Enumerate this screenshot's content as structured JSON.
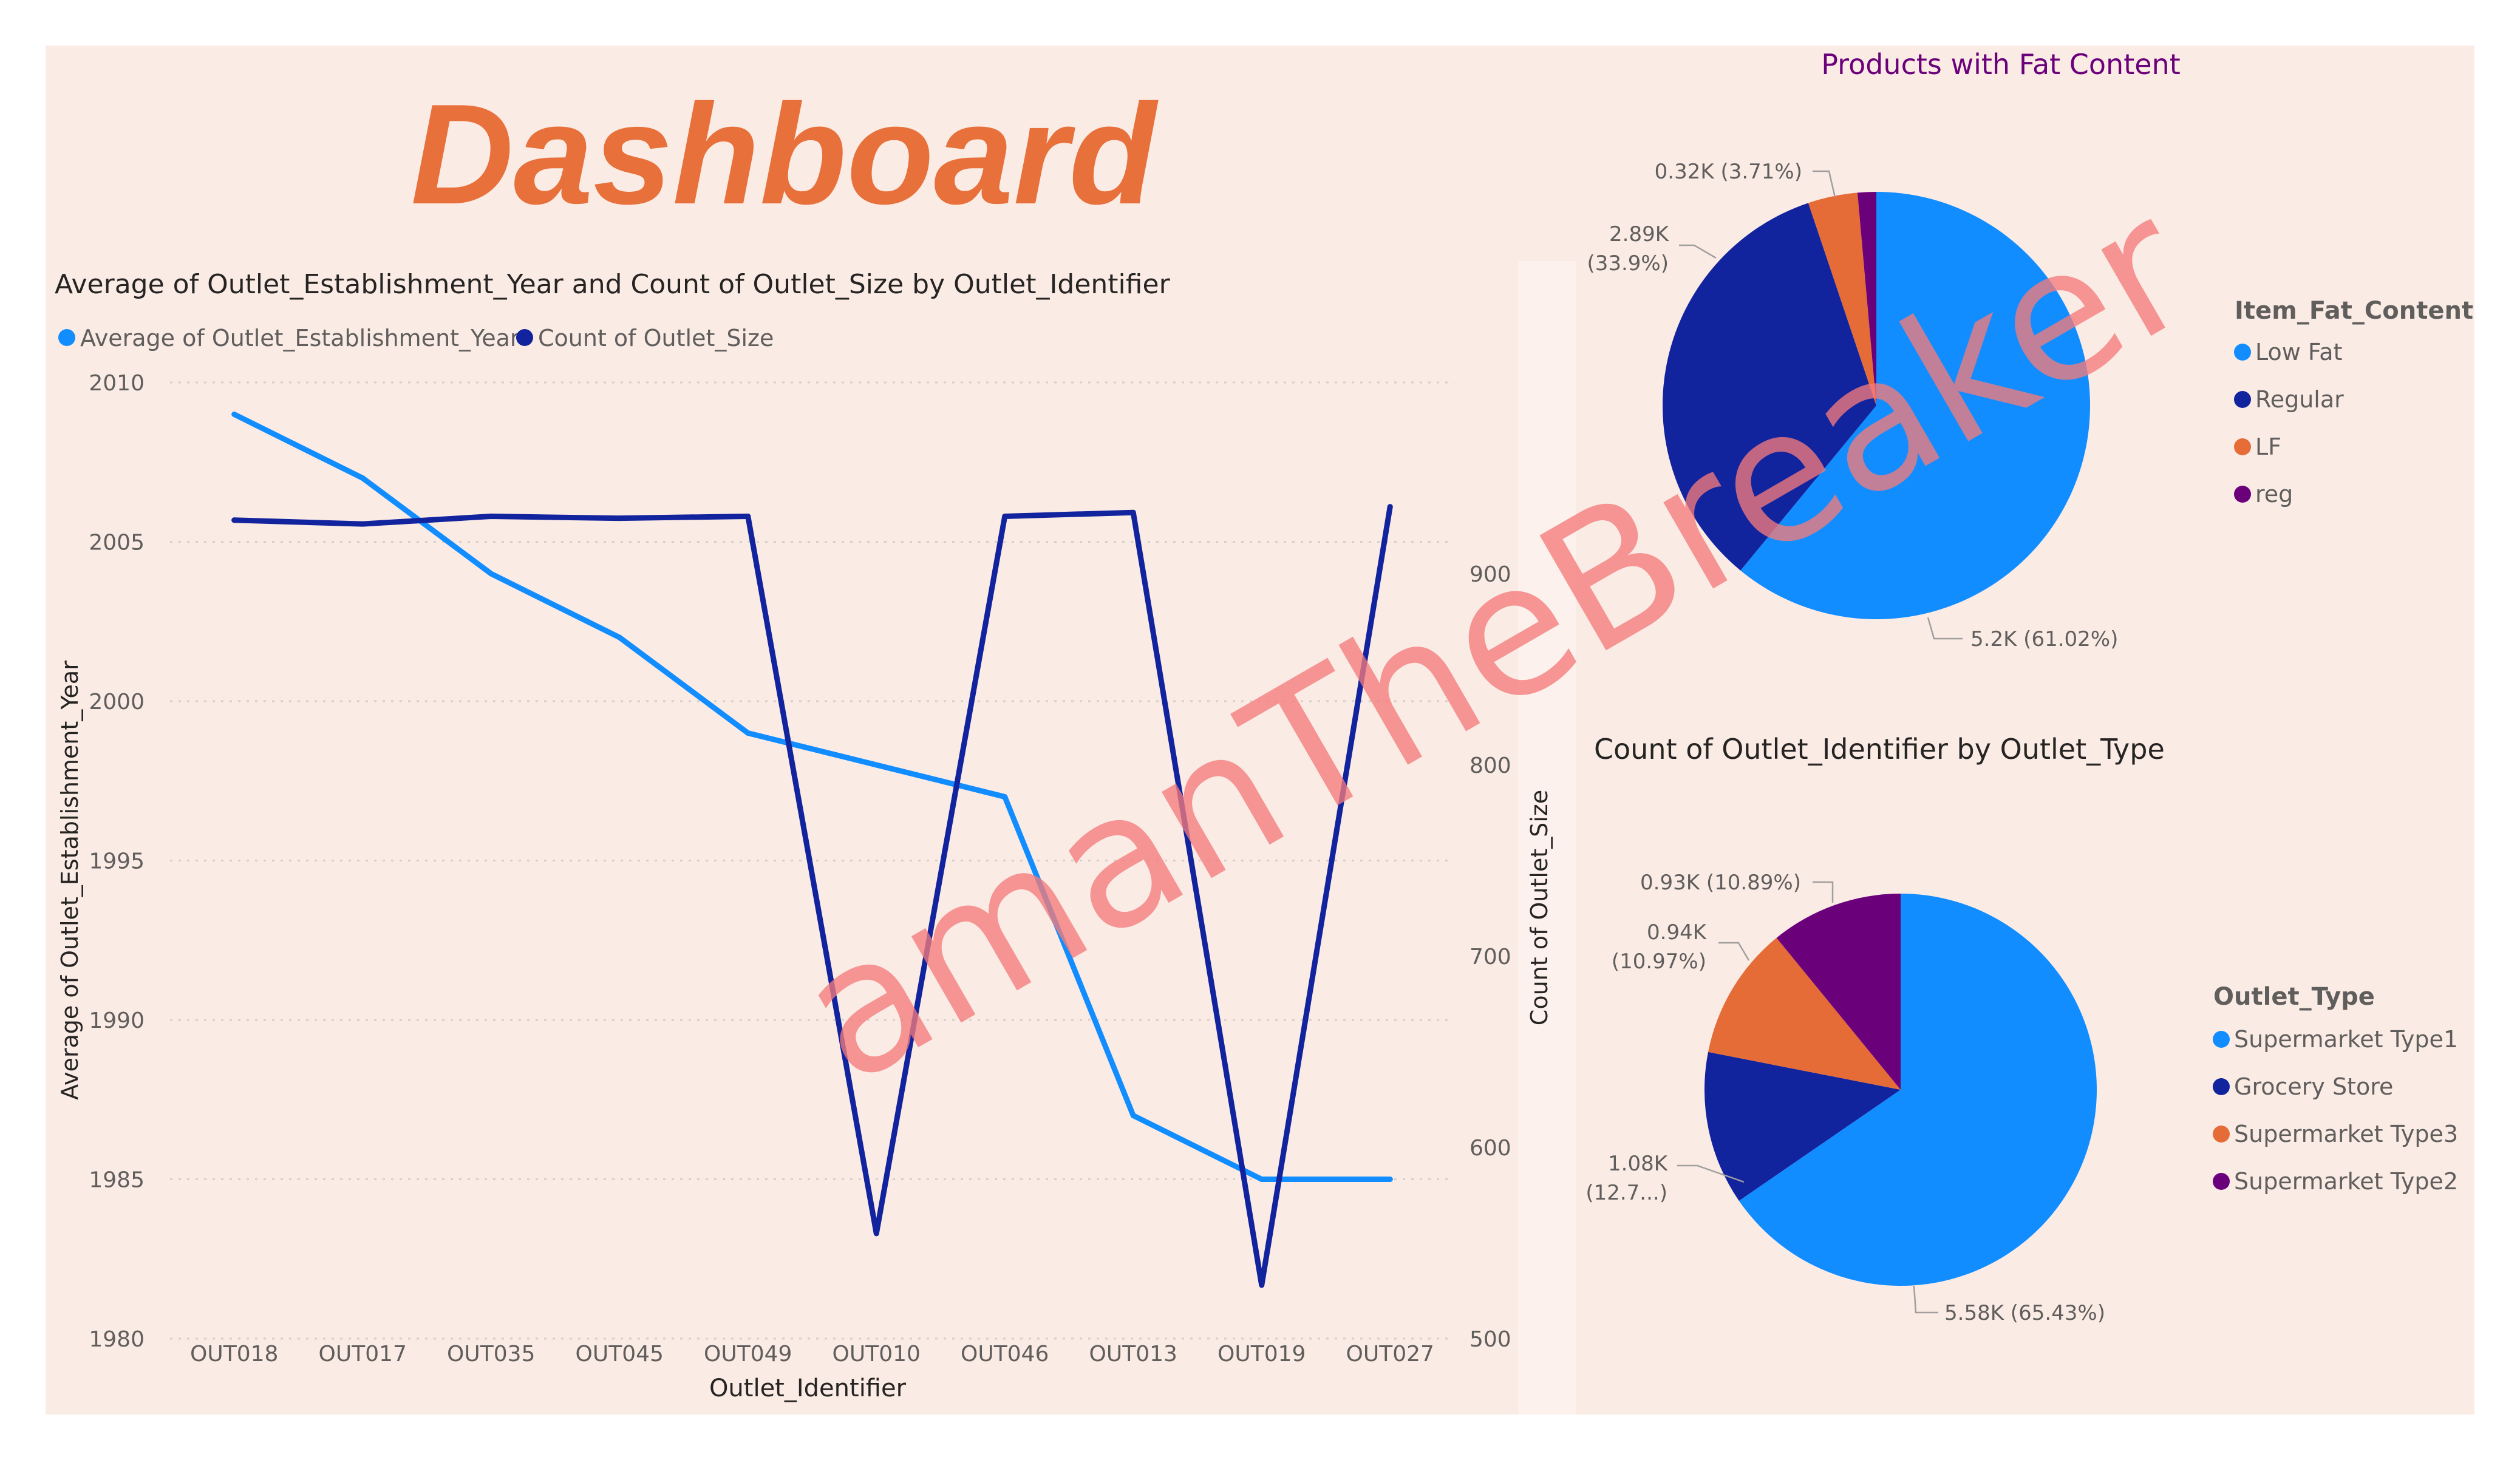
{
  "dashboard": {
    "title": "Dashboard",
    "watermark": "amanTheBreaker"
  },
  "colors": {
    "panel_bg": "#fbebe5",
    "light_blue": "#118dff",
    "dark_blue": "#12239e",
    "orange": "#e66c37",
    "purple": "#6b007b",
    "title_orange": "#e8703a",
    "title_purple": "#6b007b",
    "watermark": "#f47b7b"
  },
  "chart_data": [
    {
      "type": "line",
      "title": "Average of Outlet_Establishment_Year and Count of Outlet_Size by Outlet_Identifier",
      "xlabel": "Outlet_Identifier",
      "ylabel": "Average of Outlet_Establishment_Year",
      "y2label": "Count of Outlet_Size",
      "categories": [
        "OUT018",
        "OUT017",
        "OUT035",
        "OUT045",
        "OUT049",
        "OUT010",
        "OUT046",
        "OUT013",
        "OUT019",
        "OUT027"
      ],
      "ylim": [
        1980,
        2010
      ],
      "yticks": [
        "1980",
        "1985",
        "1990",
        "1995",
        "2000",
        "2005",
        "2010"
      ],
      "y2lim": [
        500,
        1000
      ],
      "y2ticks": [
        "500",
        "600",
        "700",
        "800",
        "900"
      ],
      "grid": true,
      "legend_position": "top-left",
      "series": [
        {
          "name": "Average of Outlet_Establishment_Year",
          "axis": "left",
          "color": "#118dff",
          "values": [
            2009,
            2007,
            2004,
            2002,
            1999,
            1998,
            1997,
            1987,
            1985,
            1985
          ]
        },
        {
          "name": "Count of Outlet_Size",
          "axis": "right",
          "color": "#12239e",
          "values": [
            928,
            926,
            930,
            929,
            930,
            555,
            930,
            932,
            528,
            935
          ]
        }
      ]
    },
    {
      "type": "pie",
      "title": "Products with Fat Content",
      "legend_title": "Item_Fat_Content",
      "legend_position": "right",
      "slices": [
        {
          "label": "Low Fat",
          "value": 5.2,
          "percent": 61.02,
          "color": "#118dff",
          "data_label": "5.2K (61.02%)"
        },
        {
          "label": "Regular",
          "value": 2.89,
          "percent": 33.9,
          "color": "#12239e",
          "data_label": "2.89K (33.9%)"
        },
        {
          "label": "LF",
          "value": 0.32,
          "percent": 3.71,
          "color": "#e66c37",
          "data_label": "0.32K (3.71%)"
        },
        {
          "label": "reg",
          "value": 0.12,
          "percent": 1.37,
          "color": "#6b007b",
          "data_label": ""
        }
      ]
    },
    {
      "type": "pie",
      "title": "Count of Outlet_Identifier by Outlet_Type",
      "legend_title": "Outlet_Type",
      "legend_position": "right",
      "slices": [
        {
          "label": "Supermarket Type1",
          "value": 5.58,
          "percent": 65.43,
          "color": "#118dff",
          "data_label": "5.58K (65.43%)"
        },
        {
          "label": "Grocery Store",
          "value": 1.08,
          "percent": 12.7,
          "color": "#12239e",
          "data_label": "1.08K (12.7...)"
        },
        {
          "label": "Supermarket Type3",
          "value": 0.94,
          "percent": 10.97,
          "color": "#e66c37",
          "data_label": "0.94K (10.97%)"
        },
        {
          "label": "Supermarket Type2",
          "value": 0.93,
          "percent": 10.89,
          "color": "#6b007b",
          "data_label": "0.93K (10.89%)"
        }
      ]
    }
  ]
}
